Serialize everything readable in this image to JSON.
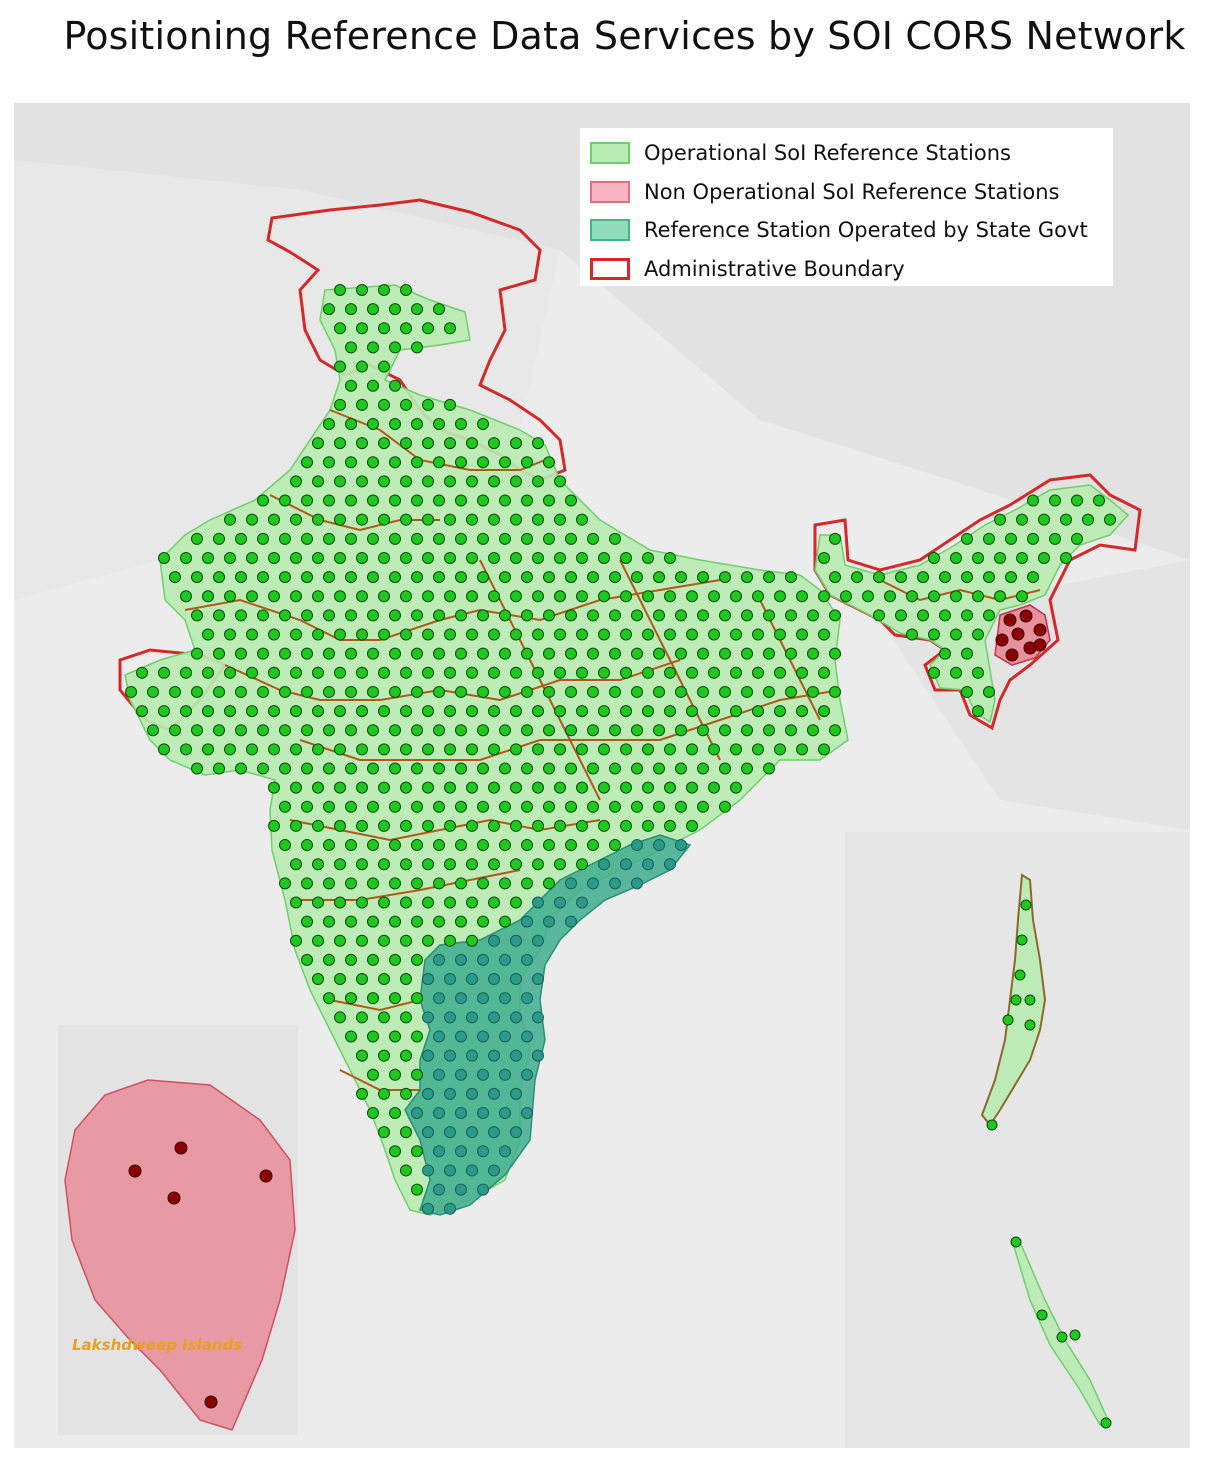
{
  "title": "Positioning Reference Data Services by SOI CORS Network",
  "legend": {
    "items": [
      {
        "label": "Operational SoI Reference Stations",
        "fill": "#b8ebb2",
        "stroke": "#6fcf6a"
      },
      {
        "label": "Non Operational SoI Reference Stations",
        "fill": "#f7b3bf",
        "stroke": "#e07080"
      },
      {
        "label": "Reference Station Operated by State Govt",
        "fill": "#8fdcb8",
        "stroke": "#3fb889"
      },
      {
        "label": "Administrative Boundary",
        "fill": "#ffffff",
        "stroke": "#d62828"
      }
    ]
  },
  "insets": {
    "lakshadweep_label": "Lakshdweep Islands"
  },
  "colors": {
    "operational_station": "#1ec81e",
    "non_operational_station": "#8b0000",
    "state_station": "#2a9a8a",
    "admin_boundary": "#d62828",
    "state_boundary": "#b05a1a"
  }
}
